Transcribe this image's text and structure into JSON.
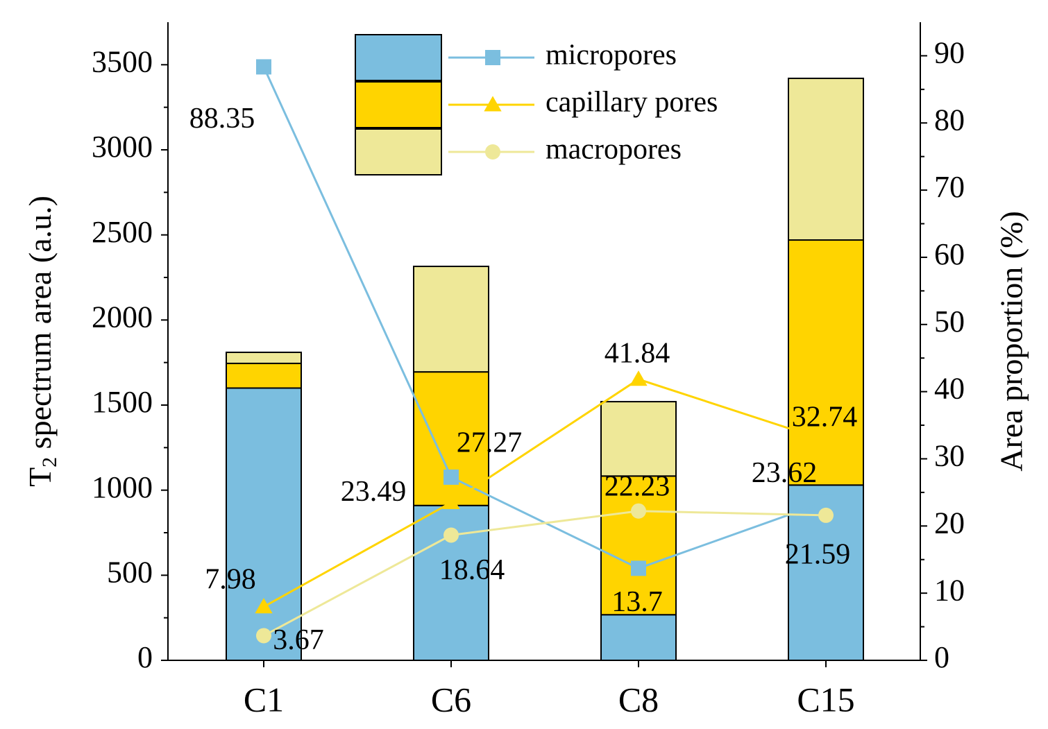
{
  "chart_data": {
    "type": "bar+line",
    "categories": [
      "C1",
      "C6",
      "C8",
      "C15"
    ],
    "bars": {
      "stacked": true,
      "axis": "left",
      "series": [
        {
          "name": "micropores",
          "values": [
            1600,
            910,
            268,
            1030
          ],
          "color": "#7BBEDF"
        },
        {
          "name": "capillary pores",
          "values": [
            145,
            785,
            815,
            1440
          ],
          "color": "#FFD400"
        },
        {
          "name": "macropores",
          "values": [
            65,
            620,
            437,
            950
          ],
          "color": "#EEE898"
        }
      ]
    },
    "lines": {
      "axis": "right",
      "series": [
        {
          "name": "micropores",
          "marker": "square",
          "values": [
            88.35,
            27.27,
            13.7,
            23.62
          ],
          "labels": [
            "88.35",
            "27.27",
            "13.7",
            "23.62"
          ],
          "color": "#7BBEDF"
        },
        {
          "name": "capillary pores",
          "marker": "triangle",
          "values": [
            7.98,
            23.49,
            41.84,
            32.74
          ],
          "labels": [
            "7.98",
            "23.49",
            "41.84",
            "32.74"
          ],
          "color": "#FFD400"
        },
        {
          "name": "macropores",
          "marker": "circle",
          "values": [
            3.67,
            18.64,
            22.23,
            21.59
          ],
          "labels": [
            "3.67",
            "18.64",
            "22.23",
            "21.59"
          ],
          "color": "#EEE898"
        }
      ]
    },
    "left_axis": {
      "label_main": "T",
      "label_sub": "2",
      "label_rest": " spectrum area (a.u.)",
      "ylim": [
        0,
        3750
      ],
      "ticks": [
        0,
        500,
        1000,
        1500,
        2000,
        2500,
        3000,
        3500
      ]
    },
    "right_axis": {
      "label": "Area proportion (%)",
      "ylim": [
        0,
        95
      ],
      "ticks": [
        0,
        10,
        20,
        30,
        40,
        50,
        60,
        70,
        80,
        90
      ]
    },
    "legend": {
      "placement": "top-center",
      "items": [
        "micropores",
        "capillary pores",
        "macropores"
      ]
    }
  }
}
